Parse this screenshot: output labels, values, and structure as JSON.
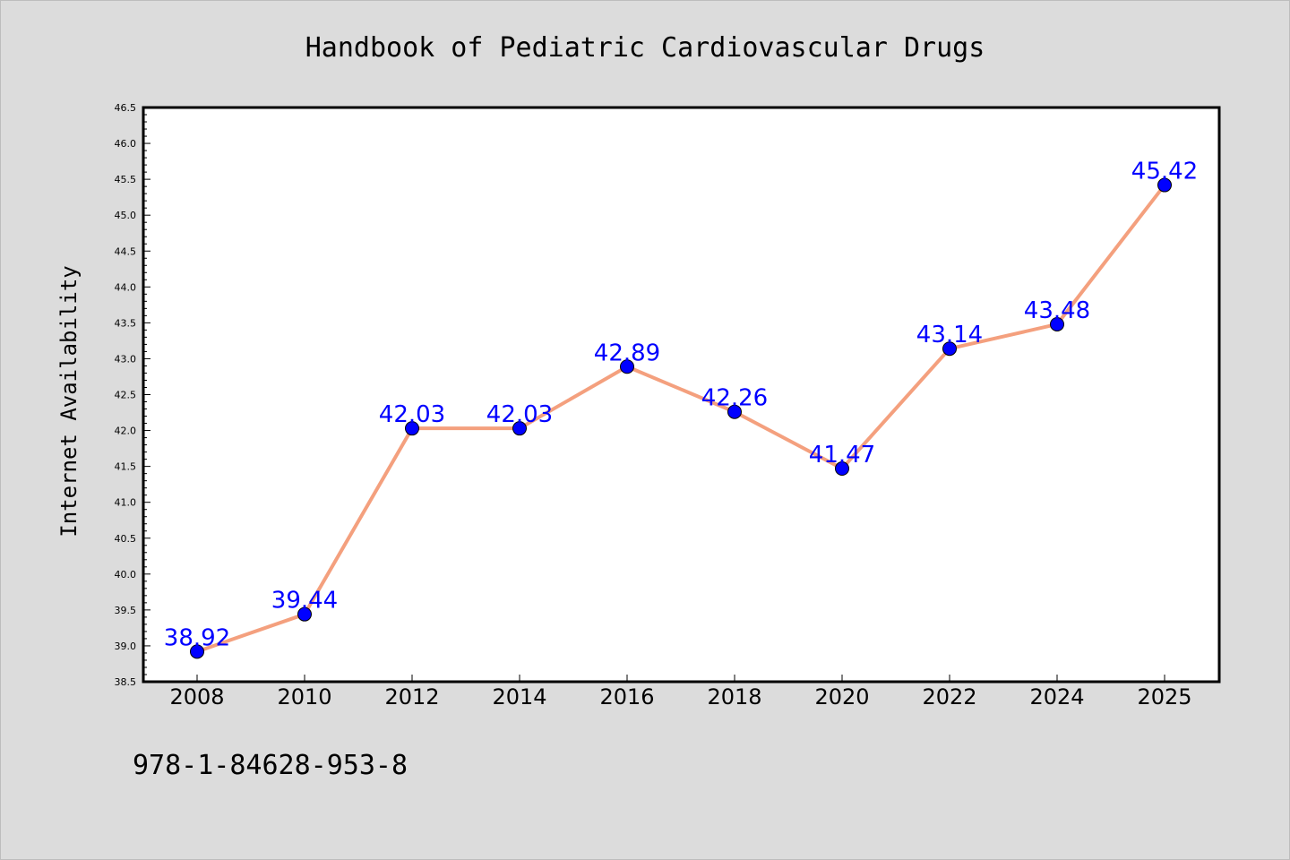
{
  "chart_data": {
    "type": "line",
    "title": "Handbook of Pediatric Cardiovascular Drugs",
    "ylabel": "Internet Availability",
    "xlabel": "",
    "categories": [
      "2008",
      "2010",
      "2012",
      "2014",
      "2016",
      "2018",
      "2020",
      "2022",
      "2024",
      "2025"
    ],
    "values": [
      38.92,
      39.44,
      42.03,
      42.03,
      42.89,
      42.26,
      41.47,
      43.14,
      43.48,
      45.42
    ],
    "data_labels": [
      "38.92",
      "39.44",
      "42.03",
      "42.03",
      "42.89",
      "42.26",
      "41.47",
      "43.14",
      "43.48",
      "45.42"
    ],
    "ylim": [
      38.5,
      46.5
    ],
    "yticks": [
      "38.5",
      "39.0",
      "39.5",
      "40.0",
      "40.5",
      "41.0",
      "41.5",
      "42.0",
      "42.5",
      "43.0",
      "43.5",
      "44.0",
      "44.5",
      "45.0",
      "45.5",
      "46.0",
      "46.5"
    ],
    "grid": false,
    "legend": "none"
  },
  "footer": {
    "isbn": "978-1-84628-953-8"
  },
  "colors": {
    "background": "#dcdcdc",
    "plot_area": "#ffffff",
    "line": "#f4a07e",
    "marker": "#0000ff",
    "data_label": "#0000ff"
  }
}
